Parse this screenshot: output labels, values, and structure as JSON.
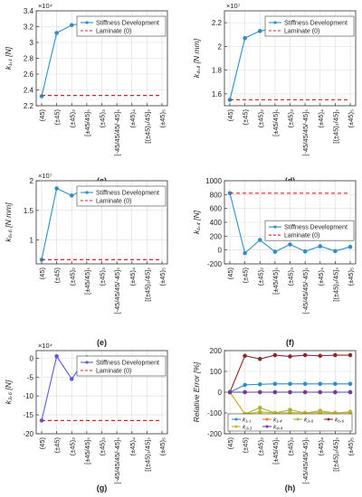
{
  "figure": {
    "category_labels": [
      "(45)",
      "(±45)",
      "(±45)₂",
      "[±45/45]ₛ",
      "(±45)₃",
      "[-45/45/45/-45]ₛ",
      "(±45)₄",
      "[(±45)₂/45]ₛ",
      "(±45)₅"
    ],
    "x_categories": 9
  },
  "chart_data": [
    {
      "panel": "(c)",
      "type": "line",
      "ylabel": "k₁,₁ [N]",
      "exponent": "×10⁴",
      "ylim": [
        2.2,
        3.4
      ],
      "yticks": [
        2.2,
        2.4,
        2.6,
        2.8,
        3.0,
        3.2,
        3.4
      ],
      "ytick_labels": [
        "2.2",
        "2.4",
        "2.6",
        "2.8",
        "3",
        "3.2",
        "3.4"
      ],
      "grid": true,
      "legend": {
        "position": "top-right",
        "entries": [
          "Stiffness Development",
          "Laminate (0)"
        ]
      },
      "series": [
        {
          "name": "Stiffness Development",
          "color": "#2e8fc8",
          "values": [
            2.32,
            3.12,
            3.22,
            3.25,
            3.25,
            3.26,
            3.26,
            3.26,
            3.27
          ]
        },
        {
          "name": "Laminate (0)",
          "color": "#d62728",
          "dashed": true,
          "values": [
            2.33,
            2.33,
            2.33,
            2.33,
            2.33,
            2.33,
            2.33,
            2.33,
            2.33
          ]
        }
      ]
    },
    {
      "panel": "(d)",
      "type": "line",
      "ylabel": "k₄,₄ [N mm]",
      "exponent": "×10⁷",
      "ylim": [
        1.5,
        2.3
      ],
      "yticks": [
        1.6,
        1.8,
        2.0,
        2.2
      ],
      "ytick_labels": [
        "1.6",
        "1.8",
        "2",
        "2.2"
      ],
      "grid": true,
      "legend": {
        "position": "top-right",
        "entries": [
          "Stiffness Development",
          "Laminate (0)"
        ]
      },
      "series": [
        {
          "name": "Stiffness Development",
          "color": "#2e8fc8",
          "values": [
            1.55,
            2.07,
            2.13,
            2.15,
            2.15,
            2.16,
            2.16,
            2.16,
            2.16
          ]
        },
        {
          "name": "Laminate (0)",
          "color": "#d62728",
          "dashed": true,
          "values": [
            1.55,
            1.55,
            1.55,
            1.55,
            1.55,
            1.55,
            1.55,
            1.55,
            1.55
          ]
        }
      ]
    },
    {
      "panel": "(e)",
      "type": "line",
      "ylabel": "k₆,₆ [N mm]",
      "exponent": "×10⁷",
      "ylim": [
        0.6,
        2.0
      ],
      "yticks": [
        1.0,
        1.5,
        2.0
      ],
      "ytick_labels": [
        "1",
        "1.5",
        "2"
      ],
      "grid": true,
      "legend": {
        "position": "top-right",
        "entries": [
          "Stiffness Development",
          "Laminate (0)"
        ]
      },
      "series": [
        {
          "name": "Stiffness Development",
          "color": "#2e8fc8",
          "values": [
            0.67,
            1.87,
            1.75,
            1.88,
            1.83,
            1.88,
            1.86,
            1.88,
            1.87
          ]
        },
        {
          "name": "Laminate (0)",
          "color": "#d62728",
          "dashed": true,
          "values": [
            0.67,
            0.67,
            0.67,
            0.67,
            0.67,
            0.67,
            0.67,
            0.67,
            0.67
          ]
        }
      ]
    },
    {
      "panel": "(f)",
      "type": "line",
      "ylabel": "k₁,₄ [N]",
      "exponent": "",
      "ylim": [
        -200,
        1000
      ],
      "yticks": [
        -200,
        0,
        200,
        400,
        600,
        800,
        1000
      ],
      "ytick_labels": [
        "-200",
        "0",
        "200",
        "400",
        "600",
        "800",
        "1000"
      ],
      "grid": true,
      "legend": {
        "position": "middle-right",
        "entries": [
          "Stiffness Development",
          "Laminate (0)"
        ]
      },
      "series": [
        {
          "name": "Stiffness Development",
          "color": "#2e8fc8",
          "values": [
            820,
            -45,
            145,
            -25,
            80,
            -20,
            55,
            -15,
            45
          ]
        },
        {
          "name": "Laminate (0)",
          "color": "#d62728",
          "dashed": true,
          "values": [
            820,
            820,
            820,
            820,
            820,
            820,
            820,
            820,
            820
          ]
        }
      ]
    },
    {
      "panel": "(g)",
      "type": "line",
      "ylabel": "k₃,₆ [N]",
      "exponent": "×10⁴",
      "ylim": [
        -20,
        2
      ],
      "yticks": [
        -20,
        -15,
        -10,
        -5,
        0
      ],
      "ytick_labels": [
        "-20",
        "-15",
        "-10",
        "-5",
        "0"
      ],
      "grid": true,
      "legend": {
        "position": "top-right",
        "entries": [
          "Stiffness Development",
          "Laminate (0)"
        ]
      },
      "series": [
        {
          "name": "Stiffness Development",
          "color": "#5b5bd6",
          "values": [
            -16.5,
            0.5,
            -5.5,
            0.2,
            -3.5,
            0.0,
            -2.5,
            0.0,
            -2.0
          ]
        },
        {
          "name": "Laminate (0)",
          "color": "#d62728",
          "dashed": true,
          "values": [
            -16.5,
            -16.5,
            -16.5,
            -16.5,
            -16.5,
            -16.5,
            -16.5,
            -16.5,
            -16.5
          ]
        }
      ]
    },
    {
      "panel": "(h)",
      "type": "line",
      "ylabel": "Relative Error [%]",
      "exponent": "",
      "ylim": [
        -200,
        200
      ],
      "yticks": [
        -200,
        -100,
        0,
        100,
        200
      ],
      "ytick_labels": [
        "-200",
        "-100",
        "0",
        "100",
        "200"
      ],
      "grid": true,
      "legend": {
        "position": "bottom",
        "entries": [
          "k₁,₁",
          "k₁,₄",
          "k₃,₆",
          "k₆,₆",
          "k₃,₃",
          "k₄,₄"
        ]
      },
      "series": [
        {
          "name": "k₁,₁",
          "color": "#2e8fc8",
          "values": [
            0,
            35,
            38,
            40,
            40,
            40,
            40,
            40,
            40
          ]
        },
        {
          "name": "k₁,₄",
          "color": "#e07b2a",
          "values": [
            0,
            0,
            0,
            0,
            0,
            0,
            0,
            0,
            0
          ]
        },
        {
          "name": "k₃,₆",
          "color": "#9ab832",
          "values": [
            0,
            -105,
            -75,
            -100,
            -85,
            -100,
            -90,
            -100,
            -95
          ]
        },
        {
          "name": "k₆,₆",
          "color": "#8b2a2a",
          "values": [
            0,
            175,
            160,
            178,
            172,
            178,
            175,
            178,
            178
          ]
        },
        {
          "name": "k₃,₃",
          "color": "#c9b020",
          "values": [
            0,
            -105,
            -95,
            -100,
            -98,
            -100,
            -98,
            -100,
            -98
          ]
        },
        {
          "name": "k₄,₄",
          "color": "#6a3fa0",
          "values": [
            0,
            0,
            0,
            0,
            0,
            0,
            0,
            0,
            0
          ]
        }
      ]
    }
  ],
  "captions": [
    "(c)",
    "(d)",
    "(e)",
    "(f)",
    "(g)",
    "(h)"
  ]
}
